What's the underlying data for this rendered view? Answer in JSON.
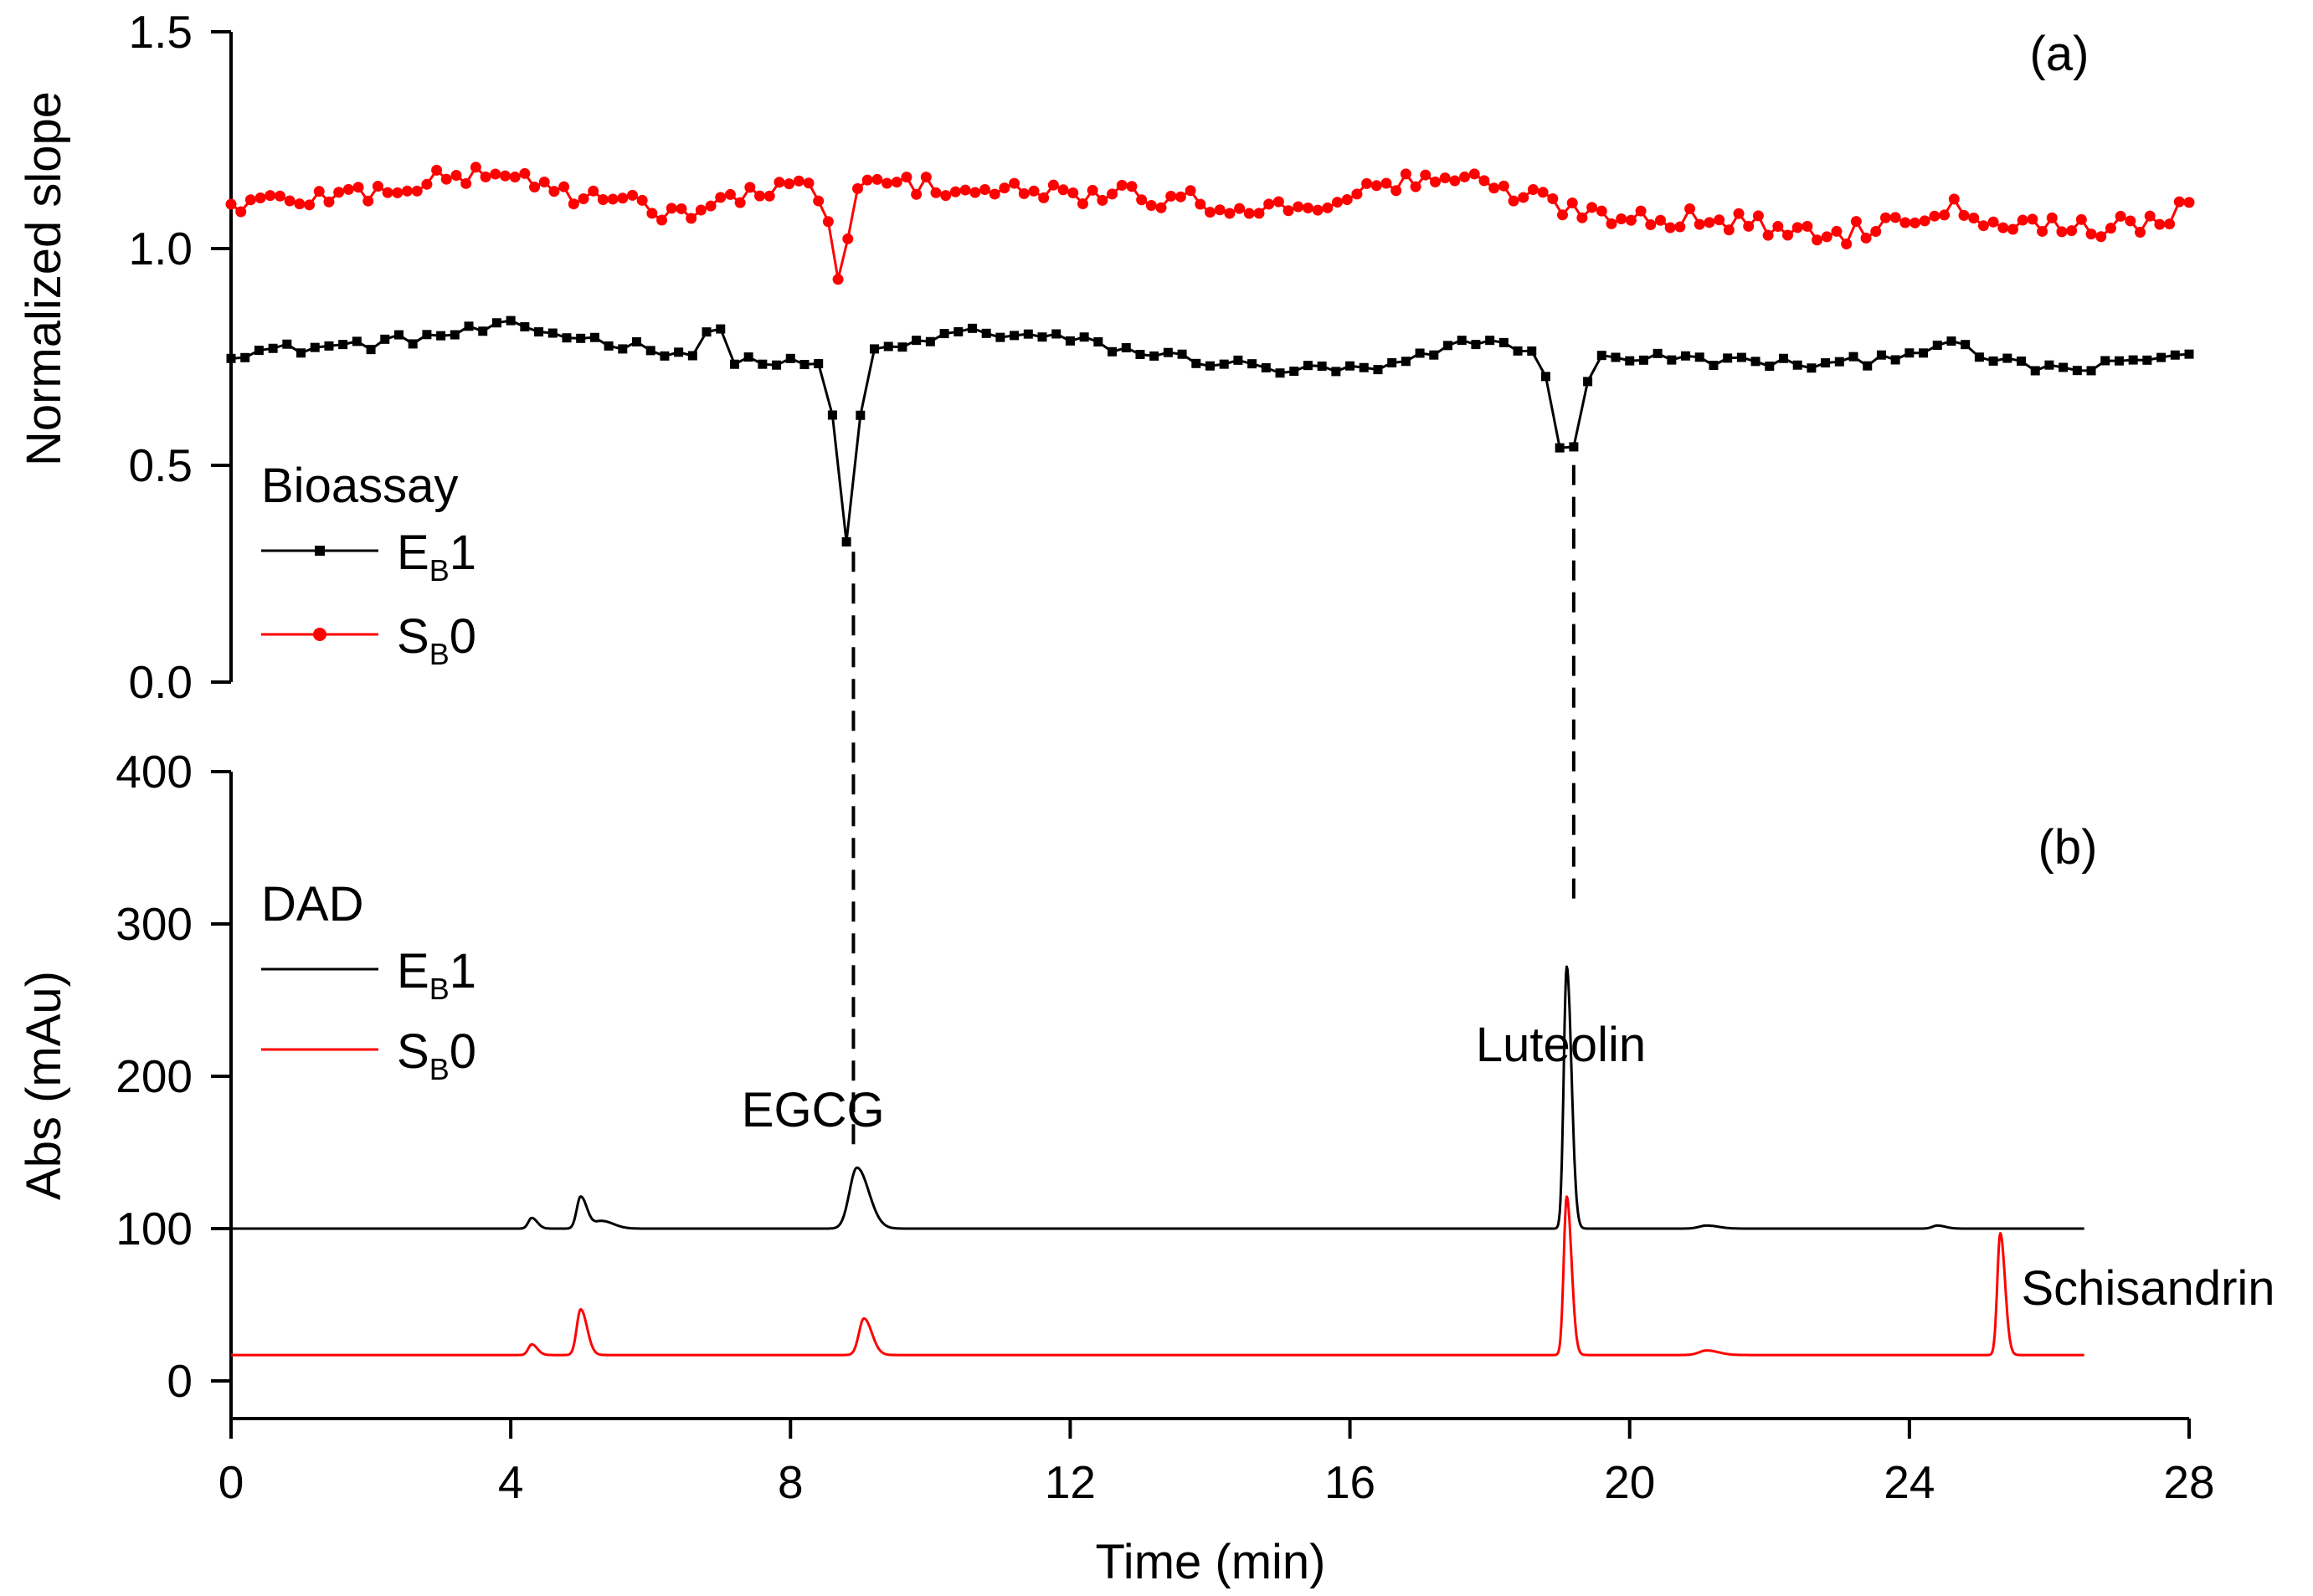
{
  "chart_data": [
    {
      "panel_label": "(a)",
      "type": "line",
      "ylabel": "Normalized slope",
      "ylim": [
        0,
        1.5
      ],
      "yticks": [
        "0.0",
        "0.5",
        "1.0",
        "1.5"
      ],
      "xlim": [
        0,
        28
      ],
      "legend": {
        "title": "Bioassay",
        "placement": "left-middle",
        "entries": [
          {
            "base": "E",
            "sub": "B",
            "suffix": "1"
          },
          {
            "base": "S",
            "sub": "B",
            "suffix": "0"
          }
        ]
      },
      "series": [
        {
          "key": "EB1",
          "color": "#000000",
          "marker": "square",
          "x_start": 0,
          "x_step": 0.2,
          "points": 141,
          "baseline": 0.76,
          "ripples": [
            {
              "x": 0.0,
              "y": 0.0
            },
            {
              "x": 2.0,
              "y": 0.02
            },
            {
              "x": 4.0,
              "y": 0.06
            },
            {
              "x": 6.0,
              "y": 0.01
            },
            {
              "x": 7.5,
              "y": -0.02
            },
            {
              "x": 8.3,
              "y": -0.03
            },
            {
              "x": 9.5,
              "y": 0.01
            },
            {
              "x": 10.5,
              "y": 0.05
            },
            {
              "x": 12.0,
              "y": 0.03
            },
            {
              "x": 13.0,
              "y": 0.0
            },
            {
              "x": 15.0,
              "y": -0.04
            },
            {
              "x": 16.5,
              "y": -0.04
            },
            {
              "x": 17.8,
              "y": 0.03
            },
            {
              "x": 18.6,
              "y": 0.01
            },
            {
              "x": 20.0,
              "y": -0.01
            },
            {
              "x": 21.5,
              "y": -0.02
            },
            {
              "x": 23.0,
              "y": -0.03
            },
            {
              "x": 24.5,
              "y": 0.02
            },
            {
              "x": 25.5,
              "y": -0.03
            },
            {
              "x": 26.5,
              "y": -0.04
            },
            {
              "x": 28.0,
              "y": 0.0
            }
          ],
          "features": [
            {
              "x": 6.9,
              "y": 0.84,
              "width": 0.15
            },
            {
              "x": 8.8,
              "y": 0.32,
              "width": 0.2
            },
            {
              "x": 19.1,
              "y": 0.52,
              "width": 0.3
            }
          ]
        },
        {
          "key": "SB0",
          "color": "#ff0000",
          "marker": "circle",
          "x_start": 0,
          "x_step": 0.14,
          "points": 201,
          "baseline": 1.1,
          "ripples": [
            {
              "x": 0.0,
              "y": 0.0
            },
            {
              "x": 2.0,
              "y": 0.03
            },
            {
              "x": 3.8,
              "y": 0.08
            },
            {
              "x": 5.0,
              "y": 0.02
            },
            {
              "x": 6.5,
              "y": -0.02
            },
            {
              "x": 7.5,
              "y": 0.03
            },
            {
              "x": 9.5,
              "y": 0.05
            },
            {
              "x": 11.0,
              "y": 0.03
            },
            {
              "x": 13.0,
              "y": 0.02
            },
            {
              "x": 15.0,
              "y": -0.01
            },
            {
              "x": 17.3,
              "y": 0.07
            },
            {
              "x": 18.3,
              "y": 0.03
            },
            {
              "x": 19.5,
              "y": -0.02
            },
            {
              "x": 21.0,
              "y": -0.03
            },
            {
              "x": 23.0,
              "y": -0.07
            },
            {
              "x": 24.5,
              "y": 0.0
            },
            {
              "x": 25.5,
              "y": -0.04
            },
            {
              "x": 27.0,
              "y": -0.05
            },
            {
              "x": 28.0,
              "y": -0.01
            }
          ],
          "features": [
            {
              "x": 8.7,
              "y": 0.93,
              "width": 0.18
            }
          ]
        }
      ]
    },
    {
      "panel_label": "(b)",
      "type": "line",
      "xlabel": "Time (min)",
      "ylabel": "Abs (mAu)",
      "ylim": [
        0,
        400
      ],
      "yticks": [
        "0",
        "100",
        "200",
        "300",
        "400"
      ],
      "xlim": [
        0,
        28
      ],
      "xticks": [
        "0",
        "4",
        "8",
        "12",
        "16",
        "20",
        "24",
        "28"
      ],
      "legend": {
        "title": "DAD",
        "placement": "left-top",
        "entries": [
          {
            "base": "E",
            "sub": "B",
            "suffix": "1"
          },
          {
            "base": "S",
            "sub": "B",
            "suffix": "0"
          }
        ]
      },
      "series": [
        {
          "key": "EB1",
          "color": "#000000",
          "x_end": 26.5,
          "baseline": 100,
          "peaks": [
            {
              "x": 4.3,
              "height": 7,
              "width": 0.07
            },
            {
              "x": 5.0,
              "height": 21,
              "width": 0.08
            },
            {
              "x": 5.3,
              "height": 5,
              "width": 0.15
            },
            {
              "x": 8.95,
              "height": 40,
              "width": 0.15
            },
            {
              "x": 19.1,
              "height": 172,
              "width": 0.06
            },
            {
              "x": 21.1,
              "height": 2,
              "width": 0.15
            },
            {
              "x": 24.4,
              "height": 2,
              "width": 0.1
            }
          ]
        },
        {
          "key": "SB0",
          "color": "#ff0000",
          "x_end": 26.5,
          "baseline": 17,
          "peaks": [
            {
              "x": 4.3,
              "height": 7,
              "width": 0.07
            },
            {
              "x": 5.0,
              "height": 30,
              "width": 0.08
            },
            {
              "x": 9.05,
              "height": 24,
              "width": 0.1
            },
            {
              "x": 19.1,
              "height": 104,
              "width": 0.06
            },
            {
              "x": 21.1,
              "height": 3,
              "width": 0.15
            },
            {
              "x": 25.3,
              "height": 80,
              "width": 0.06
            }
          ]
        }
      ],
      "annotations": [
        {
          "text": "EGCG",
          "x": 7.3,
          "y": 167
        },
        {
          "text": "Luteolin",
          "x": 17.8,
          "y": 210
        },
        {
          "text": "Schisandrin",
          "x": 25.6,
          "y": 50
        }
      ]
    }
  ],
  "guides": [
    {
      "x": 8.9,
      "from_y_a": 0.32,
      "to_y_b": 148
    },
    {
      "x": 19.2,
      "from_y_a": 0.52,
      "to_y_b": 310
    }
  ]
}
